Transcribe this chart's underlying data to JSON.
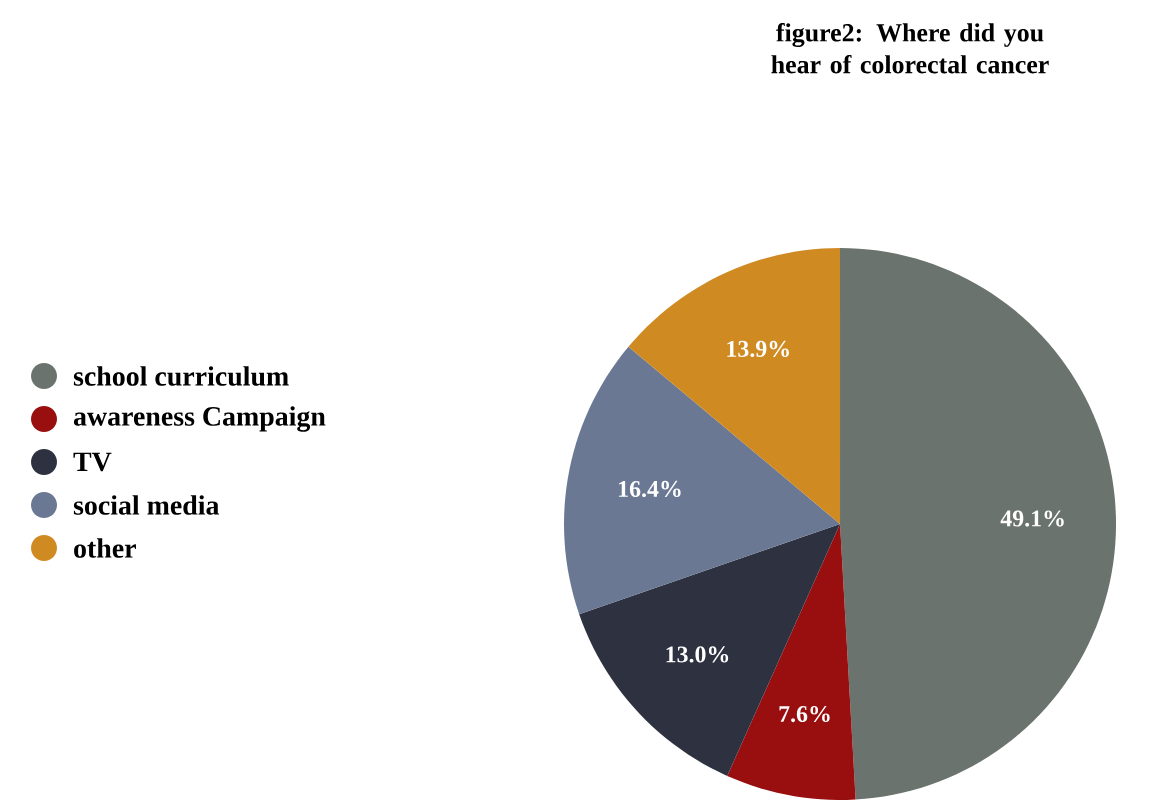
{
  "chart_data": {
    "type": "pie",
    "title": "figure2: Where did you hear of colorectal cancer",
    "categories": [
      "school curriculum",
      "awareness Campaign",
      "TV",
      "social media",
      "other"
    ],
    "values": [
      49.1,
      7.6,
      13.0,
      16.4,
      13.9
    ],
    "colors": [
      "#6b736e",
      "#990f0f",
      "#2e3140",
      "#6a7894",
      "#d08a22"
    ],
    "value_labels": [
      "49.1%",
      "7.6%",
      "13.0%",
      "16.4%",
      "13.9%"
    ],
    "legend": "left"
  }
}
